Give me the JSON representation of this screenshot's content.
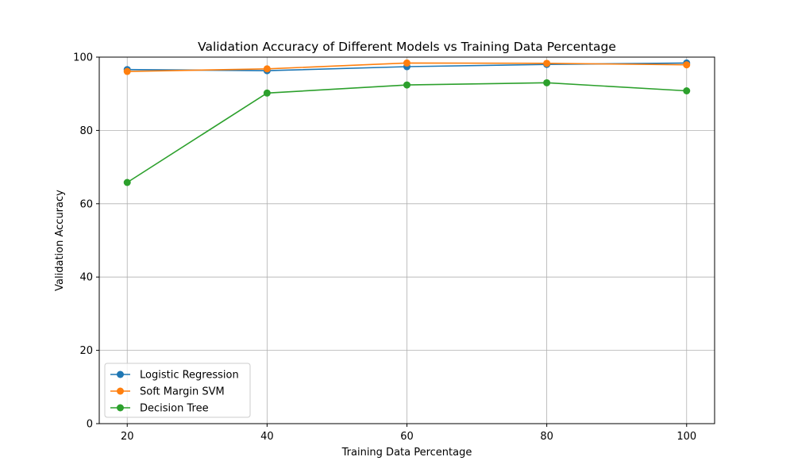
{
  "chart_data": {
    "type": "line",
    "title": "Validation Accuracy of Different Models vs Training Data Percentage",
    "xlabel": "Training Data Percentage",
    "ylabel": "Validation Accuracy",
    "x": [
      20,
      40,
      60,
      80,
      100
    ],
    "xlim": [
      16,
      104
    ],
    "ylim": [
      0,
      100
    ],
    "xticks": [
      20,
      40,
      60,
      80,
      100
    ],
    "yticks": [
      0,
      20,
      40,
      60,
      80,
      100
    ],
    "grid": true,
    "legend_position": "lower-left",
    "series": [
      {
        "name": "Logistic Regression",
        "color": "#1f77b4",
        "values": [
          96.6,
          96.3,
          97.4,
          98.0,
          98.4
        ]
      },
      {
        "name": "Soft Margin SVM",
        "color": "#ff7f0e",
        "values": [
          96.1,
          96.8,
          98.4,
          98.3,
          97.9
        ]
      },
      {
        "name": "Decision Tree",
        "color": "#2ca02c",
        "values": [
          65.8,
          90.2,
          92.4,
          93.0,
          90.8
        ]
      }
    ]
  }
}
